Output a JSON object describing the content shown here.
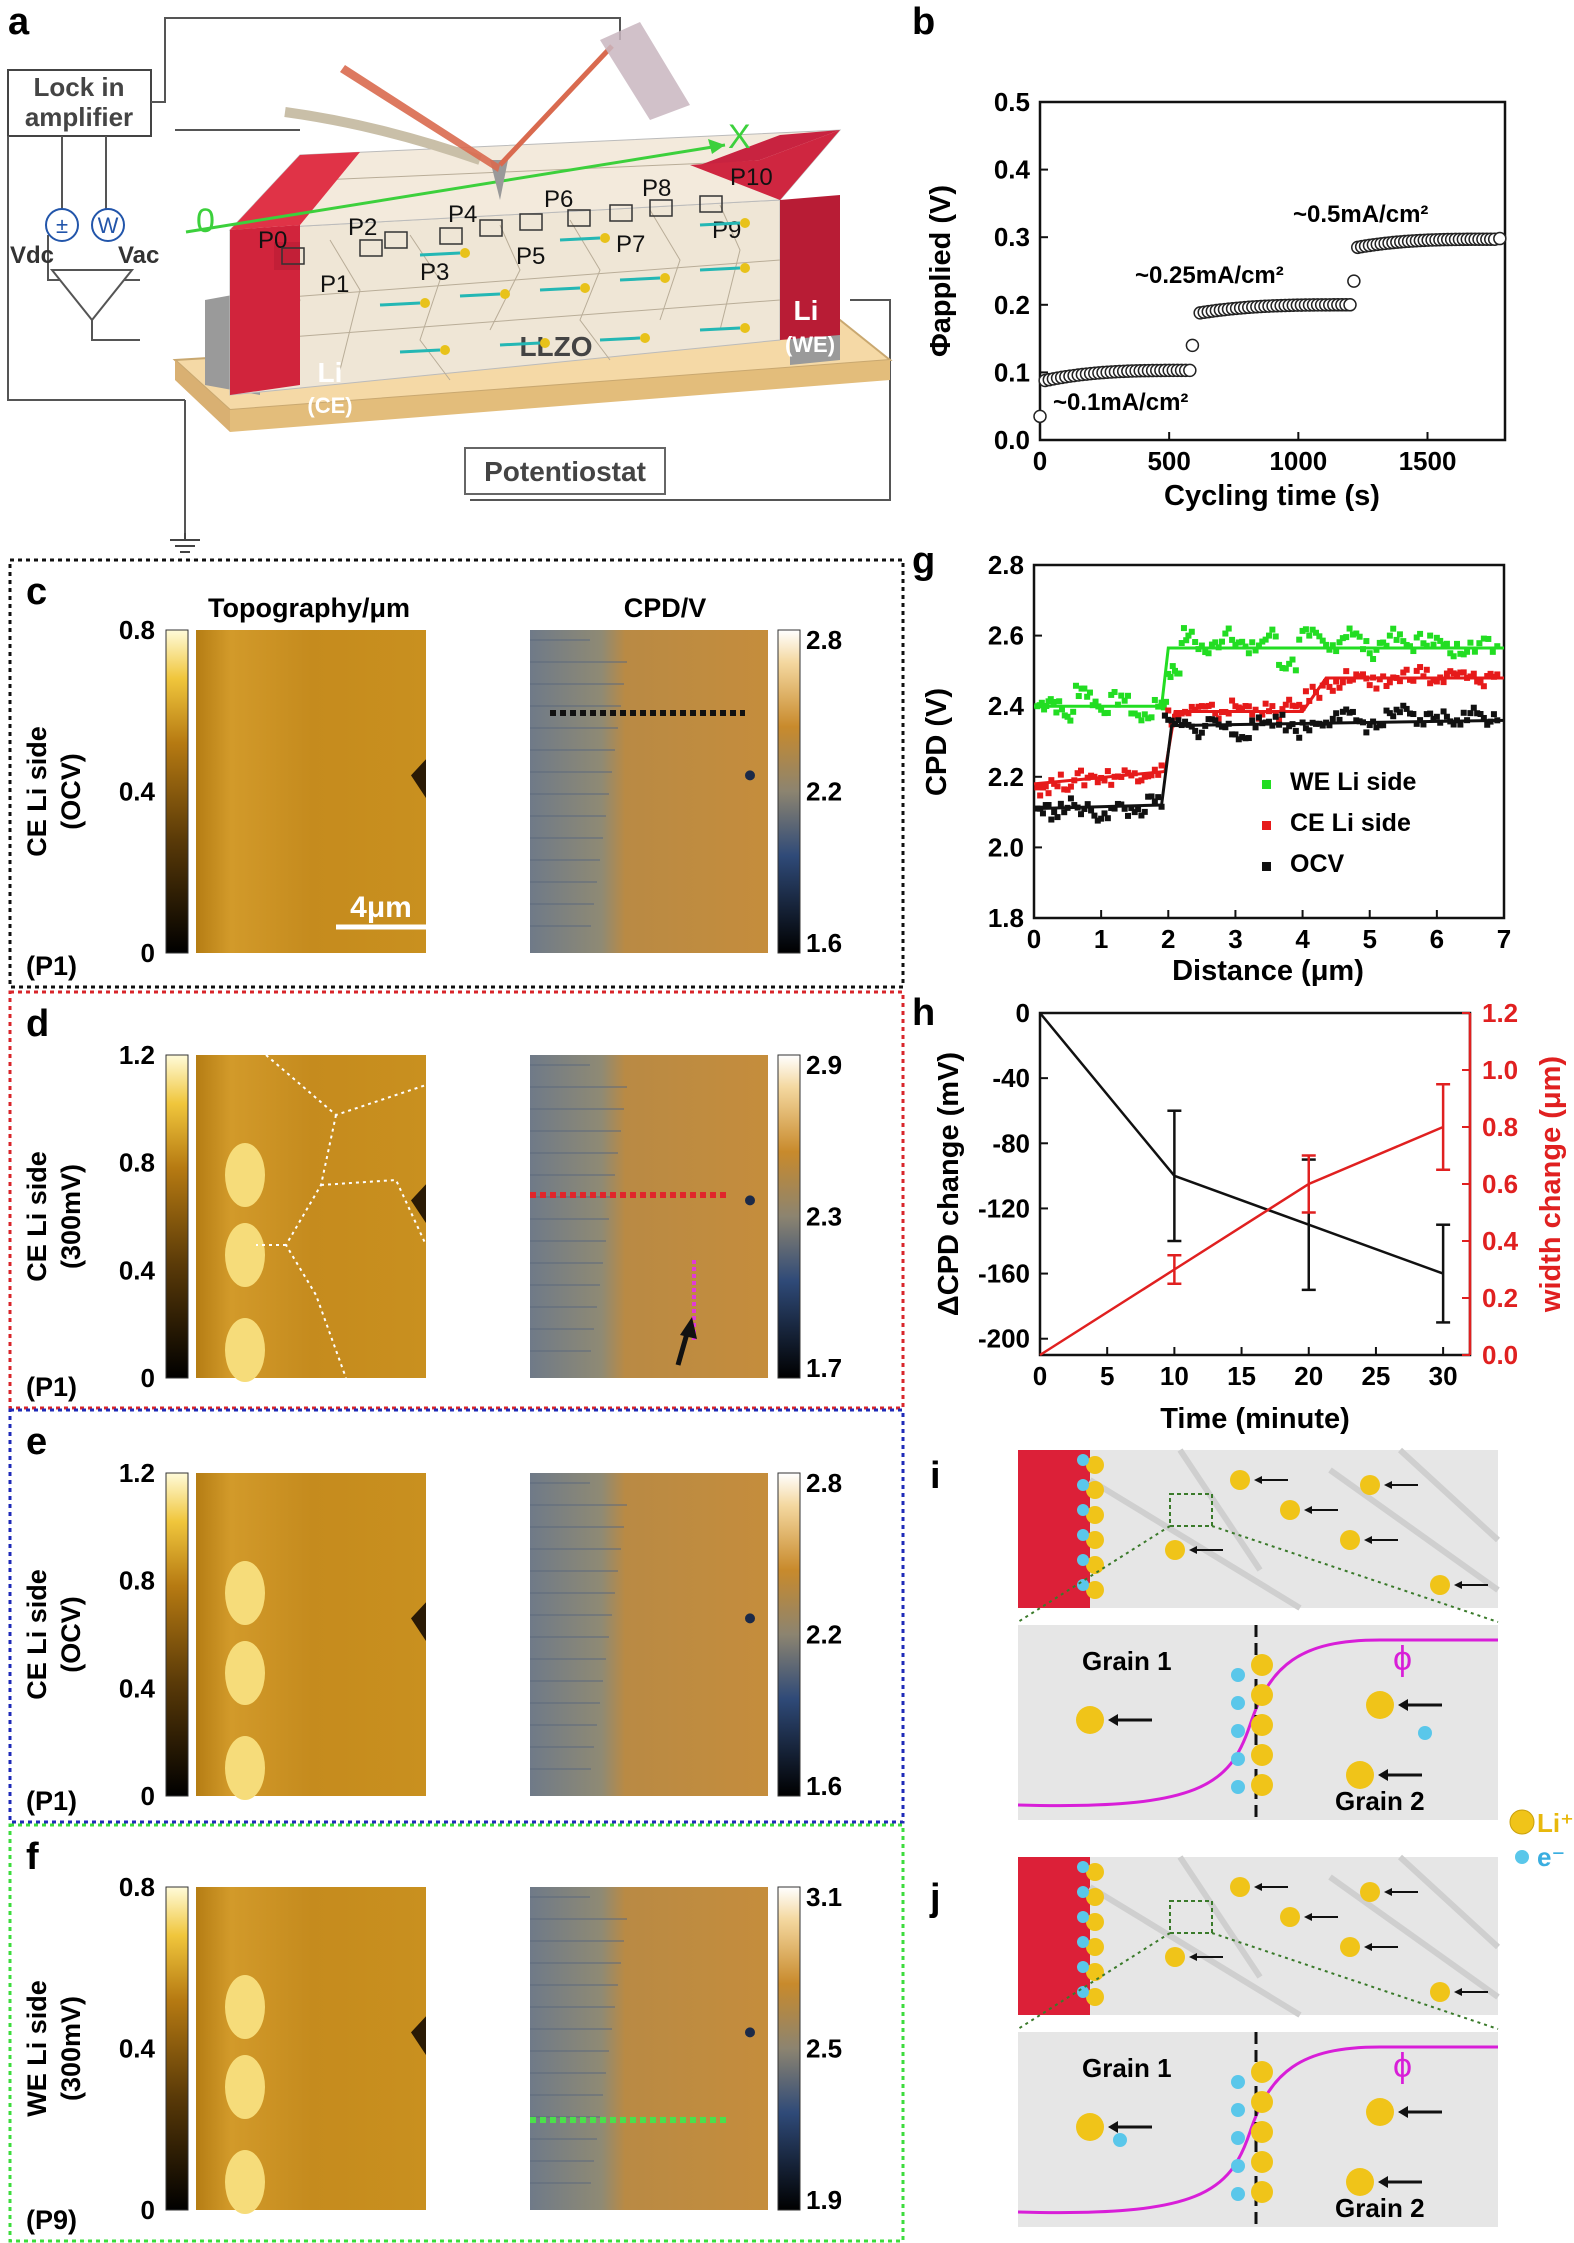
{
  "panel_letters": {
    "a": "a",
    "b": "b",
    "c": "c",
    "d": "d",
    "e": "e",
    "f": "f",
    "g": "g",
    "h": "h",
    "i": "i",
    "j": "j"
  },
  "schematic_a": {
    "lockin": [
      "Lock in",
      "amplifier"
    ],
    "vdc": "Vdc",
    "vac": "Vac",
    "potentiostat": "Potentiostat",
    "llzo": "LLZO",
    "li_ce": [
      "Li",
      "(CE)"
    ],
    "li_we": [
      "Li",
      "(WE)"
    ],
    "axis_x": "X",
    "axis_o": "0",
    "points": [
      "P0",
      "P1",
      "P2",
      "P3",
      "P4",
      "P5",
      "P6",
      "P7",
      "P8",
      "P9",
      "P10"
    ]
  },
  "afm_panels": {
    "col_topo": "Topography/μm",
    "col_cpd": "CPD/V",
    "scalebar": "4μm",
    "rows": [
      {
        "id": "c",
        "label1": "CE Li side",
        "label2": "(OCV)",
        "point": "(P1)",
        "border": "#111111",
        "topo_ticks": [
          "0.8",
          "0.4",
          "0"
        ],
        "cpd_ticks": [
          "2.8",
          "2.2",
          "1.6"
        ],
        "line_color": "#111111"
      },
      {
        "id": "d",
        "label1": "CE Li side",
        "label2": "(300mV)",
        "point": "(P1)",
        "border": "#d8262b",
        "topo_ticks": [
          "1.2",
          "0.8",
          "0.4",
          "0"
        ],
        "cpd_ticks": [
          "2.9",
          "2.3",
          "1.7"
        ],
        "line_color": "#e0262b"
      },
      {
        "id": "e",
        "label1": "CE Li side",
        "label2": "(OCV)",
        "point": "(P1)",
        "border": "#1f2bb8",
        "topo_ticks": [
          "1.2",
          "0.8",
          "0.4",
          "0"
        ],
        "cpd_ticks": [
          "2.8",
          "2.2",
          "1.6"
        ],
        "line_color": ""
      },
      {
        "id": "f",
        "label1": "WE Li side",
        "label2": "(300mV)",
        "point": "(P9)",
        "border": "#3ddc3d",
        "topo_ticks": [
          "0.8",
          "0.4",
          "0"
        ],
        "cpd_ticks": [
          "3.1",
          "2.5",
          "1.9"
        ],
        "line_color": "#4be04b"
      }
    ]
  },
  "chart_data": [
    {
      "panel": "b",
      "type": "scatter",
      "xlabel": "Cycling time (s)",
      "ylabel": "Φapplied (V)",
      "xlim": [
        0,
        1800
      ],
      "ylim": [
        0,
        0.5
      ],
      "xticks": [
        "0",
        "500",
        "1000",
        "1500"
      ],
      "yticks": [
        "0.0",
        "0.1",
        "0.2",
        "0.3",
        "0.4",
        "0.5"
      ],
      "annotations": [
        "~0.1mA/cm²",
        "~0.25mA/cm²",
        "~0.5mA/cm²"
      ],
      "segments": [
        {
          "x_start": 20,
          "x_end": 580,
          "y_start": 0.088,
          "y_end": 0.103,
          "count": 36
        },
        {
          "x_start": 620,
          "x_end": 1200,
          "y_start": 0.188,
          "y_end": 0.2,
          "count": 38
        },
        {
          "x_start": 1230,
          "x_end": 1760,
          "y_start": 0.285,
          "y_end": 0.297,
          "count": 36
        }
      ],
      "points": [
        {
          "x": 0,
          "y": 0.035
        },
        {
          "x": 590,
          "y": 0.14
        },
        {
          "x": 1215,
          "y": 0.235
        },
        {
          "x": 1780,
          "y": 0.298
        }
      ]
    },
    {
      "panel": "g",
      "type": "scatter",
      "xlabel": "Distance (μm)",
      "ylabel": "CPD (V)",
      "xlim": [
        0,
        7
      ],
      "ylim": [
        1.8,
        2.8
      ],
      "xticks": [
        "0",
        "1",
        "2",
        "3",
        "4",
        "5",
        "6",
        "7"
      ],
      "yticks": [
        "1.8",
        "2.0",
        "2.2",
        "2.4",
        "2.6",
        "2.8"
      ],
      "legend_position": "lower-right",
      "series": [
        {
          "name": "WE Li side",
          "color": "#22dd22",
          "fit": [
            [
              0,
              2.4
            ],
            [
              1.9,
              2.4
            ],
            [
              2.0,
              2.565
            ],
            [
              7,
              2.565
            ]
          ],
          "points": [
            [
              0.05,
              2.4
            ],
            [
              0.25,
              2.42
            ],
            [
              0.5,
              2.37
            ],
            [
              0.75,
              2.45
            ],
            [
              1.0,
              2.39
            ],
            [
              1.3,
              2.43
            ],
            [
              1.6,
              2.36
            ],
            [
              1.9,
              2.41
            ],
            [
              2.1,
              2.5
            ],
            [
              2.3,
              2.6
            ],
            [
              2.6,
              2.55
            ],
            [
              2.9,
              2.62
            ],
            [
              3.2,
              2.55
            ],
            [
              3.5,
              2.6
            ],
            [
              3.8,
              2.52
            ],
            [
              4.1,
              2.6
            ],
            [
              4.4,
              2.56
            ],
            [
              4.7,
              2.62
            ],
            [
              5.0,
              2.55
            ],
            [
              5.3,
              2.6
            ],
            [
              5.6,
              2.57
            ],
            [
              5.9,
              2.6
            ],
            [
              6.2,
              2.55
            ],
            [
              6.5,
              2.58
            ],
            [
              6.9,
              2.57
            ]
          ]
        },
        {
          "name": "CE Li side",
          "color": "#e61a1a",
          "fit": [
            [
              0,
              2.18
            ],
            [
              1.95,
              2.215
            ],
            [
              2.1,
              2.385
            ],
            [
              4.0,
              2.385
            ],
            [
              4.35,
              2.48
            ],
            [
              7,
              2.48
            ]
          ],
          "points": [
            [
              0.05,
              2.17
            ],
            [
              0.3,
              2.18
            ],
            [
              0.6,
              2.19
            ],
            [
              0.9,
              2.2
            ],
            [
              1.2,
              2.2
            ],
            [
              1.5,
              2.21
            ],
            [
              1.8,
              2.22
            ],
            [
              2.1,
              2.37
            ],
            [
              2.4,
              2.39
            ],
            [
              2.7,
              2.38
            ],
            [
              3.0,
              2.4
            ],
            [
              3.3,
              2.39
            ],
            [
              3.6,
              2.38
            ],
            [
              3.9,
              2.4
            ],
            [
              4.2,
              2.44
            ],
            [
              4.5,
              2.47
            ],
            [
              4.8,
              2.49
            ],
            [
              5.1,
              2.45
            ],
            [
              5.4,
              2.48
            ],
            [
              5.7,
              2.5
            ],
            [
              6.0,
              2.47
            ],
            [
              6.3,
              2.49
            ],
            [
              6.6,
              2.47
            ],
            [
              6.9,
              2.49
            ]
          ]
        },
        {
          "name": "OCV",
          "color": "#111111",
          "fit": [
            [
              0,
              2.11
            ],
            [
              1.9,
              2.12
            ],
            [
              2.05,
              2.345
            ],
            [
              7,
              2.36
            ]
          ],
          "points": [
            [
              0.05,
              2.11
            ],
            [
              0.3,
              2.1
            ],
            [
              0.6,
              2.12
            ],
            [
              0.9,
              2.09
            ],
            [
              1.2,
              2.11
            ],
            [
              1.5,
              2.1
            ],
            [
              1.8,
              2.13
            ],
            [
              2.1,
              2.35
            ],
            [
              2.4,
              2.33
            ],
            [
              2.7,
              2.36
            ],
            [
              3.0,
              2.32
            ],
            [
              3.3,
              2.34
            ],
            [
              3.6,
              2.37
            ],
            [
              3.9,
              2.33
            ],
            [
              4.2,
              2.35
            ],
            [
              4.5,
              2.38
            ],
            [
              4.8,
              2.36
            ],
            [
              5.1,
              2.34
            ],
            [
              5.4,
              2.39
            ],
            [
              5.7,
              2.35
            ],
            [
              6.0,
              2.37
            ],
            [
              6.3,
              2.36
            ],
            [
              6.6,
              2.38
            ],
            [
              6.9,
              2.36
            ]
          ]
        }
      ]
    },
    {
      "panel": "h",
      "type": "line",
      "xlabel": "Time (minute)",
      "ylabel": "ΔCPD change (mV)",
      "y2label": "width change (μm)",
      "xlim": [
        0,
        32
      ],
      "ylim": [
        -210,
        0
      ],
      "y2lim": [
        0,
        1.2
      ],
      "xticks": [
        "0",
        "5",
        "10",
        "15",
        "20",
        "25",
        "30"
      ],
      "yticks": [
        "0",
        "-40",
        "-80",
        "-120",
        "-160",
        "-200"
      ],
      "y2ticks": [
        "0.0",
        "0.2",
        "0.4",
        "0.6",
        "0.8",
        "1.0",
        "1.2"
      ],
      "series": [
        {
          "axis": "left",
          "color": "#111111",
          "x": [
            0,
            10,
            20,
            30
          ],
          "y": [
            0,
            -100,
            -130,
            -160
          ],
          "err": [
            0,
            40,
            40,
            30
          ]
        },
        {
          "axis": "right",
          "color": "#e02020",
          "x": [
            0,
            10,
            20,
            30
          ],
          "y": [
            0,
            0.3,
            0.6,
            0.8
          ],
          "err": [
            0,
            0.05,
            0.1,
            0.15
          ]
        }
      ]
    }
  ],
  "schematic_ij": {
    "grain1": "Grain 1",
    "grain2": "Grain 2",
    "phi": "ϕ",
    "legend_li": "Li⁺",
    "legend_e": "e⁻"
  }
}
